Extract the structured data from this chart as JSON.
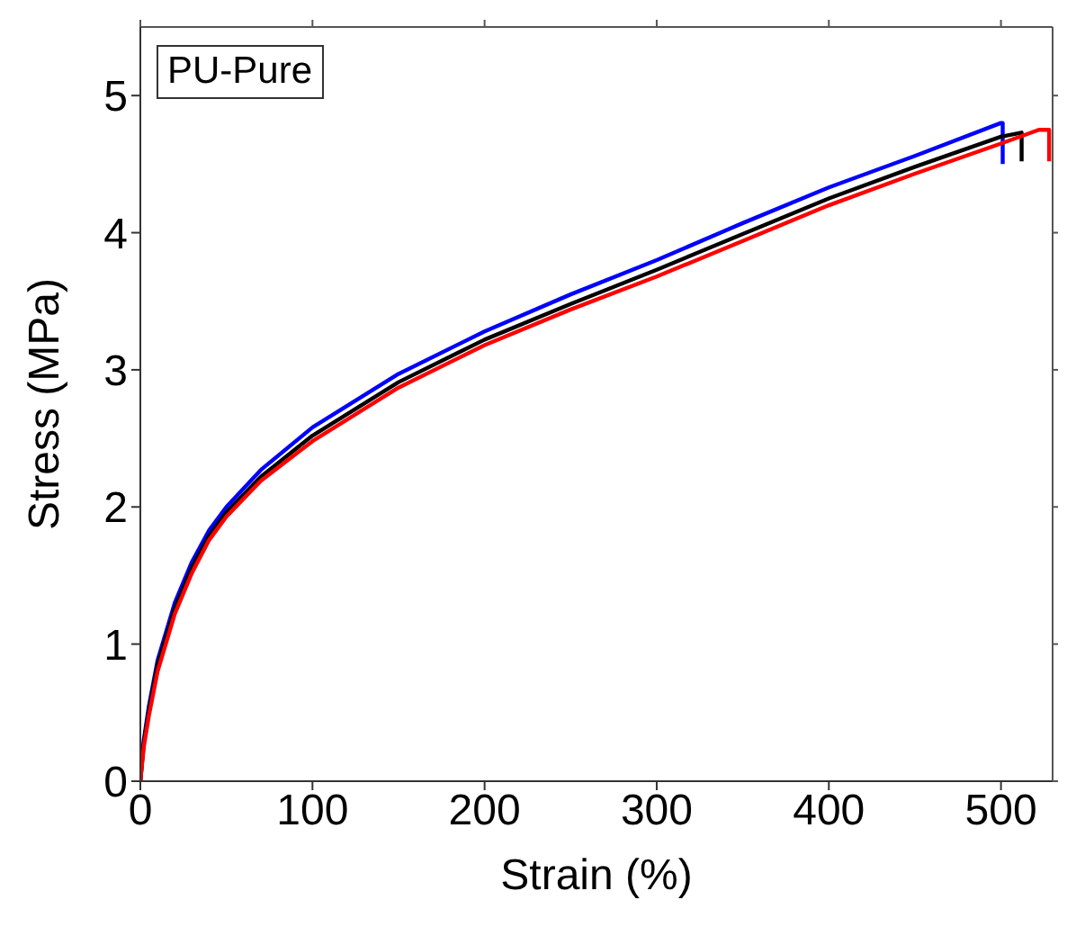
{
  "chart_data": {
    "type": "line",
    "xlabel": "Strain (%)",
    "ylabel": "Stress (MPa)",
    "annotations": [
      "PU-Pure"
    ],
    "xlim": [
      0,
      530
    ],
    "ylim": [
      0,
      5.5
    ],
    "xticks": [
      0,
      100,
      200,
      300,
      400,
      500
    ],
    "yticks": [
      0,
      1,
      2,
      3,
      4,
      5
    ],
    "legend": false,
    "marker": "none",
    "line_style": "solid",
    "series": [
      {
        "color": "#0000ff",
        "x": [
          0,
          2,
          5,
          10,
          20,
          30,
          40,
          50,
          70,
          100,
          150,
          200,
          250,
          300,
          350,
          400,
          450,
          500,
          501,
          501
        ],
        "values": [
          0,
          0.3,
          0.55,
          0.88,
          1.3,
          1.6,
          1.83,
          2.0,
          2.27,
          2.58,
          2.97,
          3.28,
          3.55,
          3.8,
          4.07,
          4.33,
          4.56,
          4.8,
          4.8,
          4.5
        ]
      },
      {
        "color": "#000000",
        "x": [
          0,
          2,
          5,
          10,
          20,
          30,
          40,
          50,
          70,
          100,
          150,
          200,
          250,
          300,
          350,
          400,
          450,
          500,
          512,
          512
        ],
        "values": [
          0,
          0.28,
          0.52,
          0.85,
          1.26,
          1.56,
          1.79,
          1.96,
          2.22,
          2.52,
          2.91,
          3.22,
          3.48,
          3.73,
          3.99,
          4.25,
          4.48,
          4.7,
          4.73,
          4.52
        ]
      },
      {
        "color": "#ff0000",
        "x": [
          0,
          2,
          5,
          10,
          20,
          30,
          40,
          50,
          70,
          100,
          150,
          200,
          250,
          300,
          350,
          400,
          450,
          500,
          522,
          528,
          528
        ],
        "values": [
          0,
          0.25,
          0.48,
          0.8,
          1.22,
          1.52,
          1.76,
          1.93,
          2.19,
          2.48,
          2.87,
          3.18,
          3.44,
          3.68,
          3.94,
          4.2,
          4.43,
          4.65,
          4.75,
          4.75,
          4.52
        ]
      }
    ]
  }
}
